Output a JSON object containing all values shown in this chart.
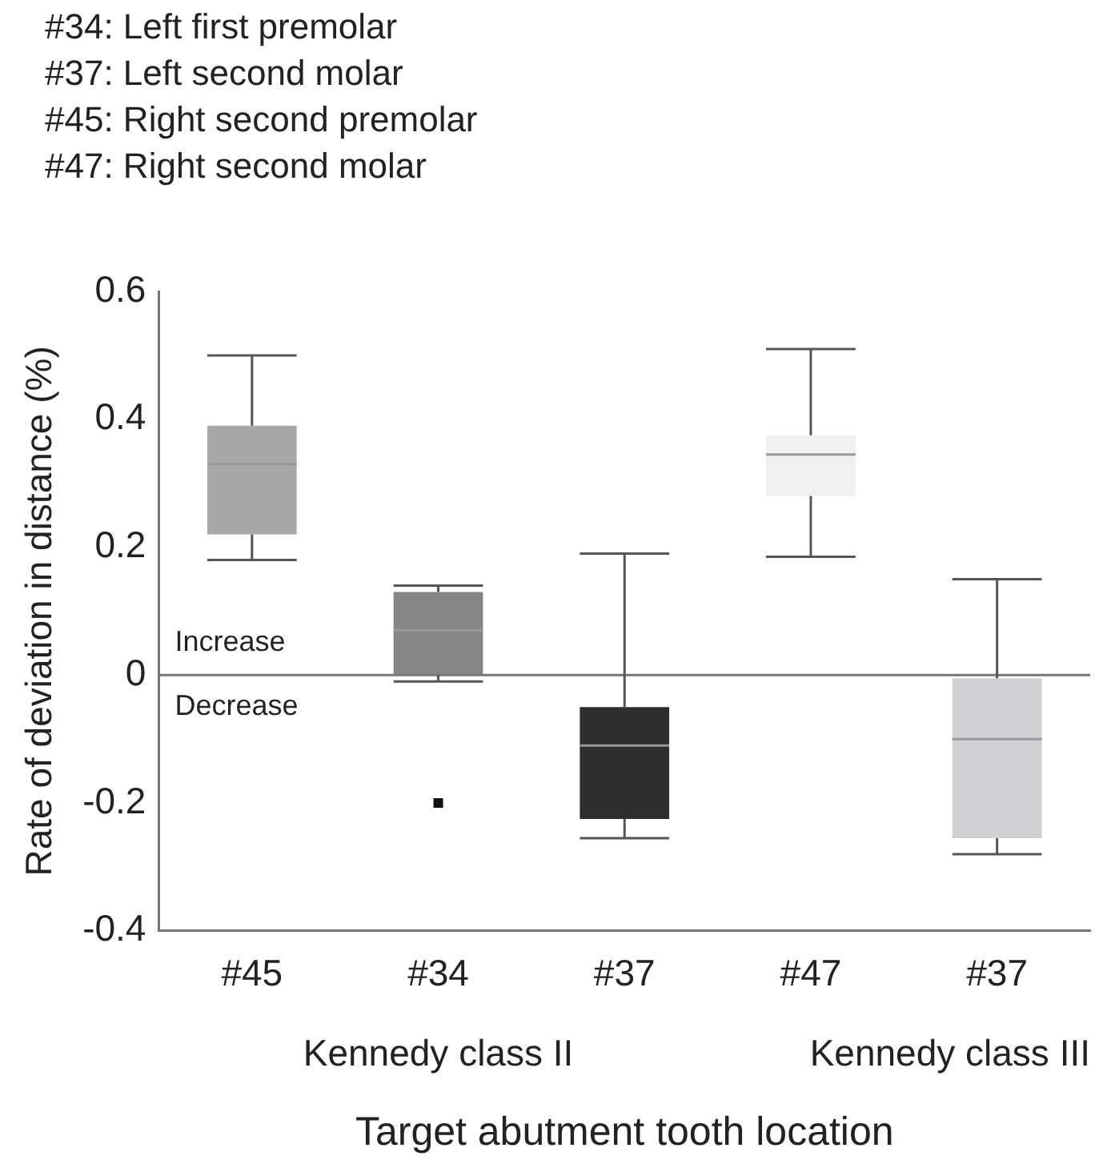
{
  "chart_data": {
    "type": "box",
    "subtitle": "#34: Left first premolar\n#37: Left second molar\n#45: Right second premolar\n#47: Right second molar",
    "xlabel": "Target abutment tooth location",
    "ylabel": "Rate of deviation in distance (%)",
    "categories": [
      "#45",
      "#34",
      "#37",
      "#47",
      "#37"
    ],
    "boxes": [
      {
        "low": 0.18,
        "q1": 0.22,
        "median": 0.33,
        "q3": 0.39,
        "high": 0.5
      },
      {
        "low": -0.01,
        "q1": 0,
        "median": 0.07,
        "q3": 0.13,
        "high": 0.14,
        "outliers": [
          -0.2
        ]
      },
      {
        "low": -0.255,
        "q1": -0.225,
        "median": -0.11,
        "q3": -0.05,
        "high": 0.19
      },
      {
        "low": 0.185,
        "q1": 0.28,
        "median": 0.345,
        "q3": 0.375,
        "high": 0.51
      },
      {
        "low": -0.28,
        "q1": -0.255,
        "median": -0.1,
        "q3": -0.005,
        "high": 0.15
      }
    ],
    "colors": [
      "#a8a8a8",
      "#858585",
      "#2e2e2e",
      "#f0f0f0",
      "#d0d0d2"
    ],
    "ylim": [
      -0.4,
      0.6
    ],
    "yticks": [
      -0.4,
      -0.2,
      0,
      0.2,
      0.4,
      0.6
    ],
    "grid": false,
    "legend": false,
    "ref_lines": [
      {
        "axis": "y",
        "value": 0,
        "color": "#777777"
      }
    ],
    "annotations": [
      "Increase",
      "Decrease",
      "Kennedy class II",
      "Kennedy class III"
    ]
  }
}
